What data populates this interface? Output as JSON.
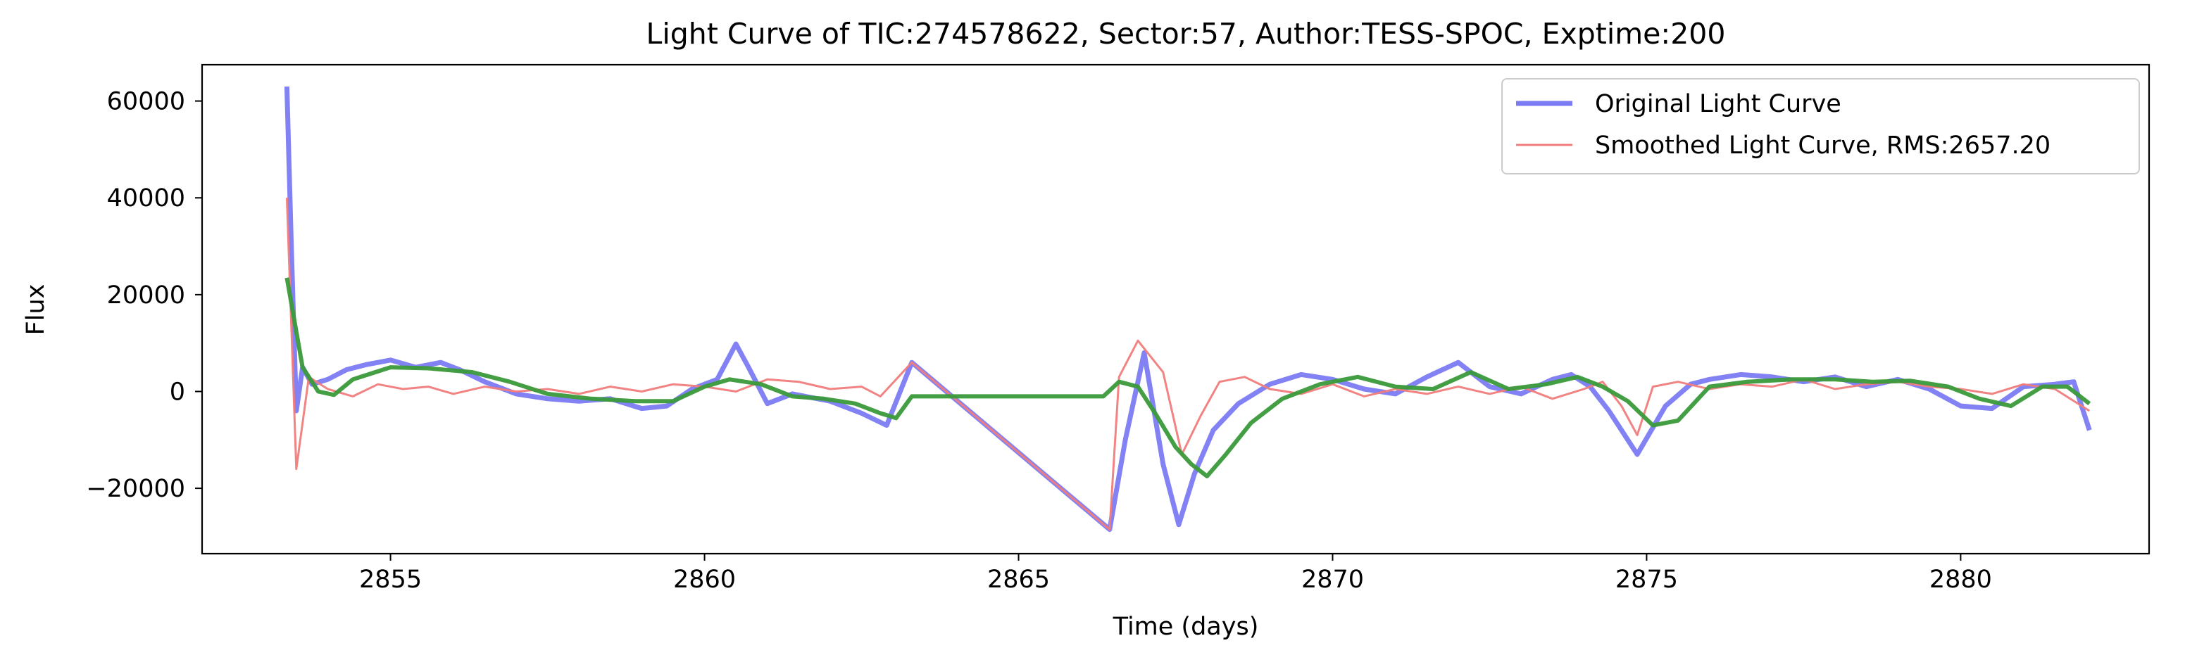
{
  "chart_data": {
    "type": "line",
    "title": "Light Curve of TIC:274578622, Sector:57, Author:TESS-SPOC, Exptime:200",
    "xlabel": "Time (days)",
    "ylabel": "Flux",
    "xlim": [
      2852.0,
      2883.0
    ],
    "ylim": [
      -33500,
      67500
    ],
    "xticks": [
      2855,
      2860,
      2865,
      2870,
      2875,
      2880
    ],
    "yticks": [
      -20000,
      0,
      20000,
      40000,
      60000
    ],
    "ytick_labels": [
      "−20000",
      "0",
      "20000",
      "40000",
      "60000"
    ],
    "grid": false,
    "legend_position": "upper right",
    "legend": [
      {
        "label": "Original Light Curve",
        "color": "#7b7bf3"
      },
      {
        "label": "Smoothed Light Curve, RMS:2657.20",
        "color": "#f07c7c"
      }
    ],
    "series": [
      {
        "name": "Original Light Curve",
        "color": "#7b7bf3",
        "x": [
          2853.35,
          2853.42,
          2853.5,
          2853.6,
          2853.75,
          2854.0,
          2854.3,
          2854.6,
          2855.0,
          2855.4,
          2855.8,
          2856.1,
          2856.5,
          2857.0,
          2857.5,
          2858.0,
          2858.5,
          2859.0,
          2859.4,
          2859.8,
          2860.2,
          2860.5,
          2860.7,
          2861.0,
          2861.4,
          2862.0,
          2862.5,
          2862.9,
          2863.3,
          2866.45,
          2866.7,
          2867.0,
          2867.3,
          2867.55,
          2867.8,
          2868.1,
          2868.5,
          2869.0,
          2869.5,
          2870.0,
          2870.5,
          2871.0,
          2871.5,
          2872.0,
          2872.5,
          2873.0,
          2873.5,
          2873.8,
          2874.1,
          2874.4,
          2874.85,
          2875.3,
          2875.7,
          2876.0,
          2876.5,
          2877.0,
          2877.5,
          2878.0,
          2878.5,
          2879.0,
          2879.5,
          2880.0,
          2880.5,
          2881.0,
          2881.5,
          2881.8,
          2882.05
        ],
        "y": [
          63000,
          30000,
          -4000,
          5000,
          1500,
          2500,
          4500,
          5500,
          6500,
          5000,
          6000,
          4500,
          2000,
          -500,
          -1500,
          -2000,
          -1500,
          -3500,
          -3000,
          500,
          2500,
          9800,
          5000,
          -2500,
          -500,
          -2000,
          -4500,
          -7000,
          6000,
          -28500,
          -10000,
          8000,
          -15000,
          -27500,
          -17000,
          -8000,
          -2500,
          1500,
          3500,
          2500,
          500,
          -500,
          3000,
          6000,
          1000,
          -500,
          2500,
          3500,
          1000,
          -4000,
          -13000,
          -3000,
          1500,
          2500,
          3500,
          3000,
          2000,
          3000,
          1000,
          2500,
          500,
          -3000,
          -3500,
          1000,
          1500,
          2000,
          -8000
        ]
      },
      {
        "name": "Smoothed Light Curve, RMS:2657.20",
        "color": "#f07c7c",
        "x": [
          2853.35,
          2853.5,
          2853.7,
          2854.0,
          2854.4,
          2854.8,
          2855.2,
          2855.6,
          2856.0,
          2856.5,
          2857.0,
          2857.5,
          2858.0,
          2858.5,
          2859.0,
          2859.5,
          2860.0,
          2860.5,
          2861.0,
          2861.5,
          2862.0,
          2862.5,
          2862.8,
          2863.3,
          2866.45,
          2866.6,
          2866.9,
          2867.3,
          2867.6,
          2867.9,
          2868.2,
          2868.6,
          2869.0,
          2869.5,
          2870.0,
          2870.5,
          2871.0,
          2871.5,
          2872.0,
          2872.5,
          2873.0,
          2873.5,
          2874.0,
          2874.3,
          2874.6,
          2874.85,
          2875.1,
          2875.5,
          2876.0,
          2876.5,
          2877.0,
          2877.5,
          2878.0,
          2878.5,
          2879.0,
          2879.5,
          2880.0,
          2880.5,
          2881.0,
          2881.5,
          2882.05
        ],
        "y": [
          40000,
          -16000,
          3000,
          500,
          -1000,
          1500,
          500,
          1000,
          -500,
          1000,
          0,
          500,
          -500,
          1000,
          0,
          1500,
          1000,
          0,
          2500,
          2000,
          500,
          1000,
          -1000,
          6000,
          -28500,
          3000,
          10500,
          4000,
          -13000,
          -5000,
          2000,
          3000,
          500,
          -500,
          1500,
          -1000,
          500,
          -500,
          1000,
          -500,
          1000,
          -1500,
          500,
          2000,
          -3000,
          -9000,
          1000,
          2000,
          500,
          1500,
          1000,
          2500,
          500,
          1500,
          2000,
          1000,
          500,
          -500,
          1500,
          500,
          -4000
        ]
      },
      {
        "name": "",
        "color": "#3a9a3a",
        "x": [
          2853.35,
          2853.6,
          2853.85,
          2854.1,
          2854.4,
          2855.0,
          2855.6,
          2856.3,
          2856.9,
          2857.5,
          2858.2,
          2858.9,
          2859.5,
          2860.0,
          2860.4,
          2860.9,
          2861.4,
          2861.9,
          2862.4,
          2862.8,
          2863.05,
          2863.3,
          2866.35,
          2866.6,
          2866.9,
          2867.2,
          2867.5,
          2867.75,
          2868.0,
          2868.3,
          2868.7,
          2869.2,
          2869.8,
          2870.4,
          2871.0,
          2871.6,
          2872.2,
          2872.8,
          2873.4,
          2873.9,
          2874.3,
          2874.7,
          2875.1,
          2875.5,
          2876.0,
          2876.6,
          2877.3,
          2878.0,
          2878.6,
          2879.2,
          2879.8,
          2880.3,
          2880.8,
          2881.3,
          2881.7,
          2882.05
        ],
        "y": [
          23500,
          5000,
          0,
          -700,
          2500,
          5000,
          4800,
          4000,
          2000,
          -500,
          -1500,
          -2000,
          -2000,
          1000,
          2500,
          1500,
          -1000,
          -1500,
          -2500,
          -4500,
          -5500,
          -1000,
          -1000,
          2000,
          1000,
          -5000,
          -11500,
          -15000,
          -17500,
          -13000,
          -6500,
          -1500,
          1500,
          3000,
          1000,
          500,
          4000,
          500,
          1500,
          3000,
          1000,
          -2000,
          -7000,
          -6000,
          1000,
          2000,
          2500,
          2500,
          2000,
          2200,
          1000,
          -1500,
          -3000,
          1000,
          1000,
          -2500
        ]
      }
    ]
  }
}
